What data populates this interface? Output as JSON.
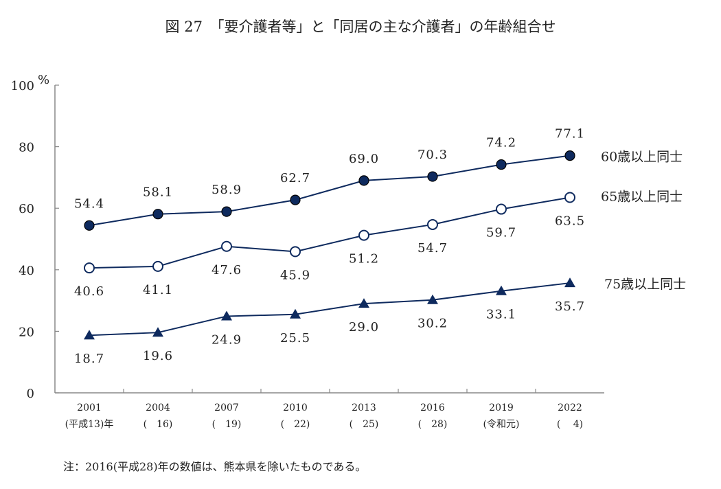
{
  "chart_data": {
    "type": "line",
    "title": "図 27　「要介護者等」と「同居の主な介護者」の年齢組合せ",
    "ylabel_unit": "%",
    "ylim": [
      0,
      100
    ],
    "yticks": [
      0,
      20,
      40,
      60,
      80,
      100
    ],
    "categories": [
      "2001",
      "2004",
      "2007",
      "2010",
      "2013",
      "2016",
      "2019",
      "2022"
    ],
    "category_sublabels": [
      "(平成13)年",
      "(　16)",
      "(　19)",
      "(　22)",
      "(　25)",
      "(　28)",
      "(令和元)",
      "(　 4)"
    ],
    "grid": false,
    "series": [
      {
        "name": "60歳以上同士",
        "marker": "filled-circle",
        "values": [
          54.4,
          58.1,
          58.9,
          62.7,
          69.0,
          70.3,
          74.2,
          77.1
        ],
        "labels": [
          "54.4",
          "58.1",
          "58.9",
          "62.7",
          "69.0",
          "70.3",
          "74.2",
          "77.1"
        ],
        "label_position": "above"
      },
      {
        "name": "65歳以上同士",
        "marker": "open-circle",
        "values": [
          40.6,
          41.1,
          47.6,
          45.9,
          51.2,
          54.7,
          59.7,
          63.5
        ],
        "labels": [
          "40.6",
          "41.1",
          "47.6",
          "45.9",
          "51.2",
          "54.7",
          "59.7",
          "63.5"
        ],
        "label_position": "below"
      },
      {
        "name": "75歳以上同士",
        "marker": "filled-triangle",
        "values": [
          18.7,
          19.6,
          24.9,
          25.5,
          29.0,
          30.2,
          33.1,
          35.7
        ],
        "labels": [
          "18.7",
          "19.6",
          "24.9",
          "25.5",
          "29.0",
          "30.2",
          "33.1",
          "35.7"
        ],
        "label_position": "below"
      }
    ],
    "legend_placement": "right, at line ends",
    "note": "注：2016(平成28)年の数値は、熊本県を除いたものである。",
    "colors": {
      "line": "#0e2a5e",
      "axis": "#888888"
    }
  }
}
